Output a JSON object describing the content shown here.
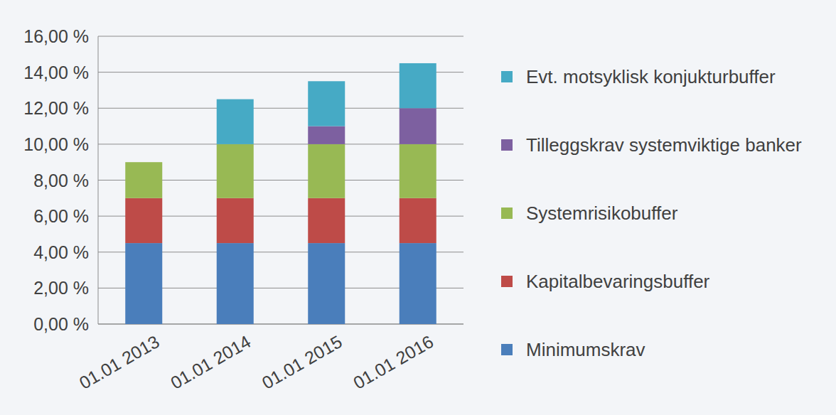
{
  "chart_data": {
    "type": "bar",
    "stacked": true,
    "grid": true,
    "legend": "right",
    "categories": [
      "01.01 2013",
      "01.01 2014",
      "01.01 2015",
      "01.01 2016"
    ],
    "series": [
      {
        "name": "Minimumskrav",
        "color": "#4a7ebb",
        "values": [
          4.5,
          4.5,
          4.5,
          4.5
        ]
      },
      {
        "name": "Kapitalbevaringsbuffer",
        "color": "#be4b48",
        "values": [
          2.5,
          2.5,
          2.5,
          2.5
        ]
      },
      {
        "name": "Systemrisikobuffer",
        "color": "#98b954",
        "values": [
          2,
          3,
          3,
          3
        ]
      },
      {
        "name": "Tilleggskrav systemviktige banker",
        "color": "#7d60a0",
        "values": [
          0,
          0,
          1,
          2
        ]
      },
      {
        "name": "Evt. motsyklisk konjukturbuffer",
        "color": "#46aac5",
        "values": [
          0,
          2.5,
          2.5,
          2.5
        ]
      }
    ],
    "ylim": [
      0,
      16
    ],
    "yticks": [
      {
        "value": 0,
        "label": "0,00 %"
      },
      {
        "value": 2,
        "label": "2,00 %"
      },
      {
        "value": 4,
        "label": "4,00 %"
      },
      {
        "value": 6,
        "label": "6,00 %"
      },
      {
        "value": 8,
        "label": "8,00 %"
      },
      {
        "value": 10,
        "label": "10,00 %"
      },
      {
        "value": 12,
        "label": "12,00 %"
      },
      {
        "value": 14,
        "label": "14,00 %"
      },
      {
        "value": 16,
        "label": "16,00 %"
      }
    ]
  }
}
